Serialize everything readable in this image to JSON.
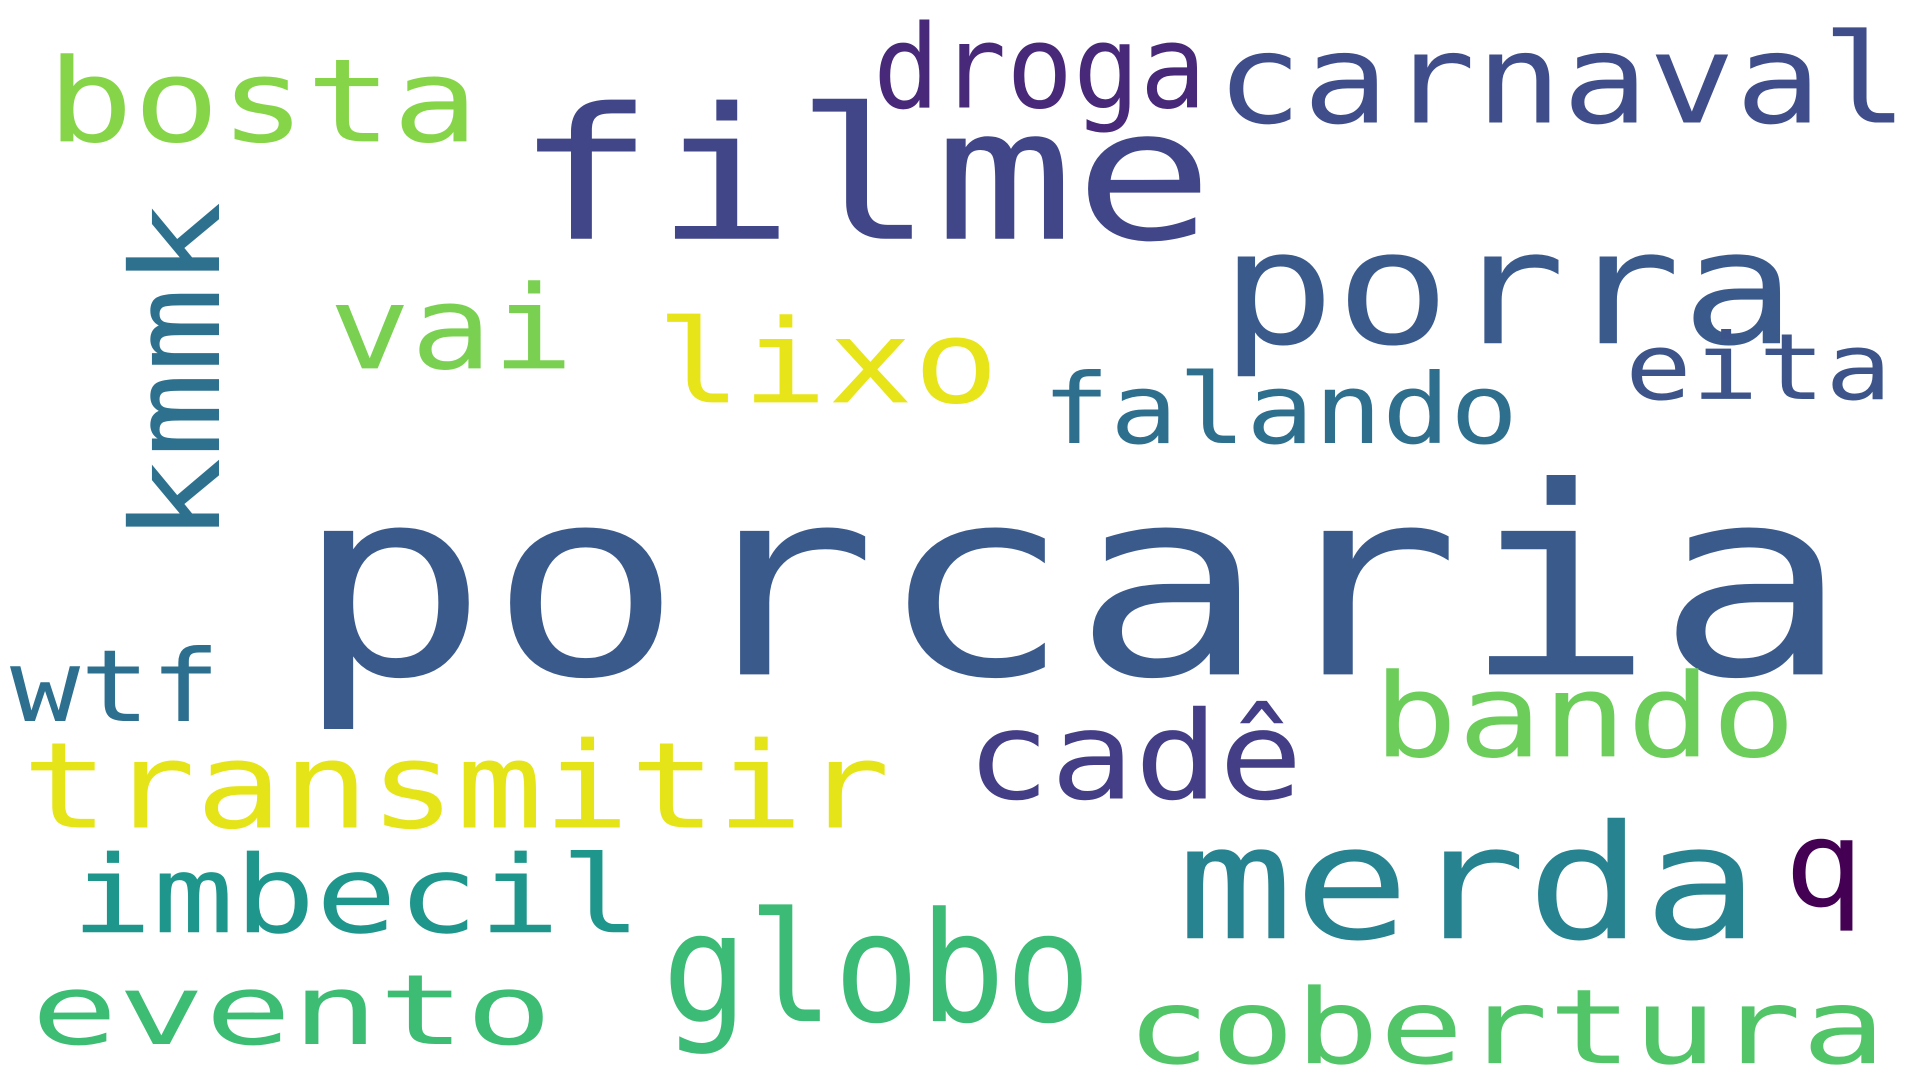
{
  "words": [
    {
      "text": "porcaria",
      "color": "#3b5a8c"
    },
    {
      "text": "filme",
      "color": "#404687"
    },
    {
      "text": "porra",
      "color": "#3b5a8c"
    },
    {
      "text": "carnaval",
      "color": "#3f4e8a"
    },
    {
      "text": "droga",
      "color": "#482878"
    },
    {
      "text": "bosta",
      "color": "#86d549"
    },
    {
      "text": "kmmk",
      "color": "#2d718e"
    },
    {
      "text": "vai",
      "color": "#7ad151"
    },
    {
      "text": "lixo",
      "color": "#e7e419"
    },
    {
      "text": "falando",
      "color": "#2e6f8e"
    },
    {
      "text": "eita",
      "color": "#3c5489"
    },
    {
      "text": "wtf",
      "color": "#2d6f8e"
    },
    {
      "text": "transmitir",
      "color": "#e5e419"
    },
    {
      "text": "cadê",
      "color": "#433e85"
    },
    {
      "text": "bando",
      "color": "#6ccd5a"
    },
    {
      "text": "q",
      "color": "#440154"
    },
    {
      "text": "merda",
      "color": "#26838f"
    },
    {
      "text": "imbecil",
      "color": "#1f968b"
    },
    {
      "text": "globo",
      "color": "#3bbb75"
    },
    {
      "text": "evento",
      "color": "#3dbc74"
    },
    {
      "text": "cobertura",
      "color": "#52c569"
    }
  ]
}
